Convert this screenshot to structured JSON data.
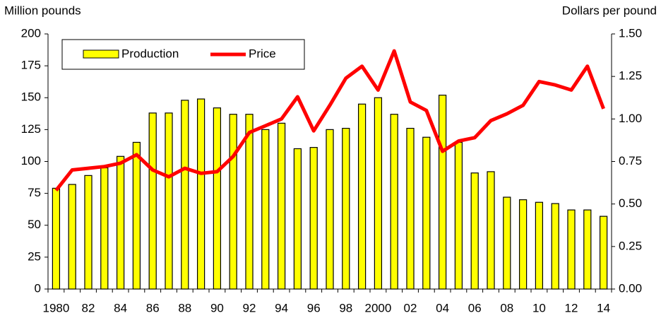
{
  "chart_data": {
    "type": "bar-line",
    "y_label": "Million pounds",
    "y2_label": "Dollars per pound",
    "categories": [
      "1980",
      null,
      "82",
      null,
      "84",
      null,
      "86",
      null,
      "88",
      null,
      "90",
      null,
      "92",
      null,
      "94",
      null,
      "96",
      null,
      "98",
      null,
      "2000",
      null,
      "02",
      null,
      "04",
      null,
      "06",
      null,
      "08",
      null,
      "10",
      null,
      "12",
      null,
      "14"
    ],
    "series": [
      {
        "name": "Production",
        "type": "bar",
        "color": "#ffff00",
        "values": [
          79,
          82,
          89,
          95,
          104,
          115,
          138,
          138,
          148,
          149,
          142,
          137,
          137,
          125,
          130,
          110,
          111,
          125,
          126,
          145,
          150,
          137,
          126,
          119,
          152,
          115,
          91,
          92,
          72,
          70,
          68,
          67,
          62,
          62,
          57
        ]
      },
      {
        "name": "Price",
        "type": "line",
        "axis": "y2",
        "color": "#ff0000",
        "values": [
          0.58,
          0.7,
          0.71,
          0.72,
          0.74,
          0.79,
          0.7,
          0.66,
          0.71,
          0.68,
          0.69,
          0.78,
          0.92,
          0.96,
          1.0,
          1.13,
          0.93,
          1.08,
          1.24,
          1.31,
          1.17,
          1.4,
          1.1,
          1.05,
          0.81,
          0.87,
          0.89,
          0.99,
          1.03,
          1.08,
          1.22,
          1.2,
          1.17,
          1.31,
          1.06
        ]
      }
    ],
    "ylim": [
      0,
      200
    ],
    "yticks": [
      0,
      25,
      50,
      75,
      100,
      125,
      150,
      175,
      200
    ],
    "y2lim": [
      0,
      1.5
    ],
    "y2ticks": [
      {
        "value": 0,
        "label": "0.00"
      },
      0.25,
      {
        "value": 0.5,
        "label": "0.50"
      },
      0.75,
      {
        "value": 1,
        "label": "1.00"
      },
      1.25,
      {
        "value": 1.5,
        "label": "1.50"
      }
    ],
    "grid": false,
    "legend": "upper left"
  }
}
